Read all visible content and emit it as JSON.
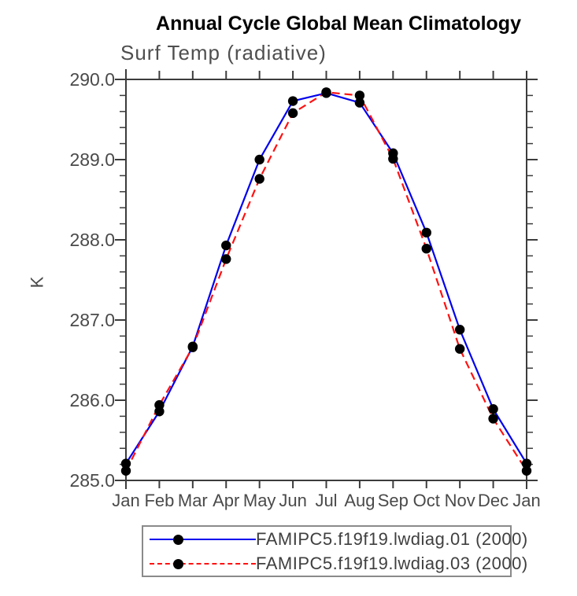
{
  "page": {
    "background": "#ffffff"
  },
  "chart_data": {
    "type": "line",
    "title": "Annual Cycle Global Mean Climatology",
    "subtitle": "Surf Temp (radiative)",
    "ylabel": "K",
    "x_categories": [
      "Jan",
      "Feb",
      "Mar",
      "Apr",
      "May",
      "Jun",
      "Jul",
      "Aug",
      "Sep",
      "Oct",
      "Nov",
      "Dec",
      "Jan"
    ],
    "ylim": [
      285.0,
      290.0
    ],
    "ytick_values": [
      285.0,
      286.0,
      287.0,
      288.0,
      289.0,
      290.0
    ],
    "ytick_labels": [
      "285.0",
      "286.0",
      "287.0",
      "288.0",
      "289.0",
      "290.0"
    ],
    "ytick_minor_step": 0.2,
    "grid": false,
    "legend_position": "bottom-center-boxed",
    "axis_color": "#3c3c3c",
    "text_color": "#4a4a4a",
    "marker": "filled-circle",
    "marker_color": "#000000",
    "series": [
      {
        "name": "FAMIPC5.f19f19.lwdiag.01 (2000)",
        "color": "#0000ee",
        "line_style": "solid",
        "values": [
          285.21,
          285.86,
          286.67,
          287.93,
          289.0,
          289.73,
          289.83,
          289.71,
          289.08,
          288.09,
          286.88,
          285.89,
          285.21
        ]
      },
      {
        "name": "FAMIPC5.f19f19.lwdiag.03 (2000)",
        "color": "#ff1111",
        "line_style": "dashed",
        "values": [
          285.12,
          285.94,
          286.66,
          287.76,
          288.76,
          289.58,
          289.84,
          289.8,
          289.01,
          287.89,
          286.64,
          285.77,
          285.12
        ]
      }
    ]
  }
}
